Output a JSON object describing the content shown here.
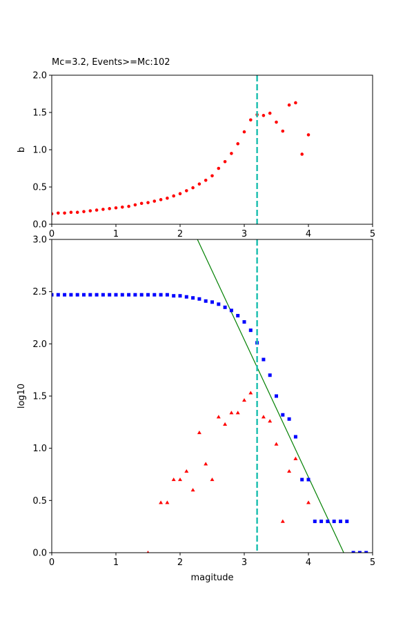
{
  "chart_data": [
    {
      "type": "scatter",
      "title": "Mc=3.2, Events>=Mc:102",
      "xlabel": "",
      "ylabel": "b",
      "xlim": [
        0,
        5
      ],
      "ylim": [
        0,
        2.0
      ],
      "x_ticks": [
        "0",
        "1",
        "2",
        "3",
        "4",
        "5"
      ],
      "y_ticks": [
        "0.0",
        "0.5",
        "1.0",
        "1.5",
        "2.0"
      ],
      "grid": false,
      "mc_line": {
        "x": 3.2,
        "color": "#1fbfb0"
      },
      "series": [
        {
          "marker": "circle",
          "color": "#ff0000",
          "x": [
            0.0,
            0.1,
            0.2,
            0.3,
            0.4,
            0.5,
            0.6,
            0.7,
            0.8,
            0.9,
            1.0,
            1.1,
            1.2,
            1.3,
            1.4,
            1.5,
            1.6,
            1.7,
            1.8,
            1.9,
            2.0,
            2.1,
            2.2,
            2.3,
            2.4,
            2.5,
            2.6,
            2.7,
            2.8,
            2.9,
            3.0,
            3.1,
            3.2,
            3.3,
            3.4,
            3.5,
            3.6,
            3.7,
            3.8,
            3.9,
            4.0
          ],
          "y": [
            0.14,
            0.15,
            0.15,
            0.16,
            0.16,
            0.17,
            0.18,
            0.19,
            0.2,
            0.21,
            0.22,
            0.23,
            0.24,
            0.26,
            0.28,
            0.29,
            0.31,
            0.33,
            0.35,
            0.38,
            0.41,
            0.45,
            0.49,
            0.54,
            0.59,
            0.65,
            0.75,
            0.84,
            0.95,
            1.08,
            1.24,
            1.4,
            1.47,
            1.46,
            1.49,
            1.37,
            1.25,
            1.6,
            1.63,
            0.94,
            1.2
          ]
        }
      ]
    },
    {
      "type": "scatter",
      "title": "",
      "xlabel": "magitude",
      "ylabel": "log10",
      "xlim": [
        0,
        5
      ],
      "ylim": [
        0,
        3.0
      ],
      "x_ticks": [
        "0",
        "1",
        "2",
        "3",
        "4",
        "5"
      ],
      "y_ticks": [
        "0.0",
        "0.5",
        "1.0",
        "1.5",
        "2.0",
        "2.5",
        "3.0"
      ],
      "grid": false,
      "mc_line": {
        "x": 3.2,
        "color": "#1fbfb0"
      },
      "fit_line": {
        "color": "#008000",
        "x": [
          2.27,
          4.55
        ],
        "y": [
          3.0,
          0.0
        ]
      },
      "series": [
        {
          "marker": "square",
          "color": "#0000ff",
          "x": [
            0.0,
            0.1,
            0.2,
            0.3,
            0.4,
            0.5,
            0.6,
            0.7,
            0.8,
            0.9,
            1.0,
            1.1,
            1.2,
            1.3,
            1.4,
            1.5,
            1.6,
            1.7,
            1.8,
            1.9,
            2.0,
            2.1,
            2.2,
            2.3,
            2.4,
            2.5,
            2.6,
            2.7,
            2.8,
            2.9,
            3.0,
            3.1,
            3.2,
            3.3,
            3.4,
            3.5,
            3.6,
            3.7,
            3.8,
            3.9,
            4.0,
            4.1,
            4.2,
            4.3,
            4.4,
            4.5,
            4.6,
            4.7,
            4.8,
            4.9
          ],
          "y": [
            2.47,
            2.47,
            2.47,
            2.47,
            2.47,
            2.47,
            2.47,
            2.47,
            2.47,
            2.47,
            2.47,
            2.47,
            2.47,
            2.47,
            2.47,
            2.47,
            2.47,
            2.47,
            2.47,
            2.46,
            2.46,
            2.45,
            2.44,
            2.43,
            2.41,
            2.4,
            2.38,
            2.35,
            2.32,
            2.27,
            2.21,
            2.13,
            2.01,
            1.85,
            1.7,
            1.5,
            1.32,
            1.28,
            1.11,
            0.7,
            0.7,
            0.3,
            0.3,
            0.3,
            0.3,
            0.3,
            0.3,
            0.0,
            0.0,
            0.0
          ]
        },
        {
          "marker": "triangle",
          "color": "#ff0000",
          "x": [
            1.5,
            1.7,
            1.8,
            1.9,
            2.0,
            2.1,
            2.2,
            2.3,
            2.4,
            2.5,
            2.6,
            2.7,
            2.8,
            2.9,
            3.0,
            3.1,
            3.3,
            3.4,
            3.5,
            3.6,
            3.7,
            3.8,
            4.0
          ],
          "y": [
            0.0,
            0.48,
            0.48,
            0.7,
            0.7,
            0.78,
            0.6,
            1.15,
            0.85,
            0.7,
            1.3,
            1.23,
            1.34,
            1.34,
            1.46,
            1.53,
            1.3,
            1.26,
            1.04,
            0.3,
            0.78,
            0.9,
            0.48
          ]
        }
      ]
    }
  ]
}
